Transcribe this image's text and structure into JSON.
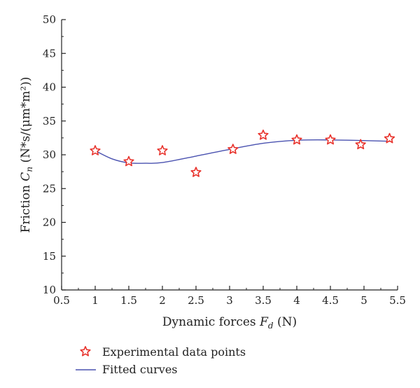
{
  "chart_data": {
    "type": "scatter",
    "xlabel": {
      "text": "Dynamic forces ",
      "symbol": "F",
      "subscript": "d",
      "unit": " (N)"
    },
    "ylabel": {
      "text": "Friction ",
      "symbol": "C",
      "subscript": "n",
      "unit": " (N*s/(μm*m²))"
    },
    "xlim": [
      0.5,
      5.5
    ],
    "ylim": [
      10,
      50
    ],
    "xticks": [
      0.5,
      1,
      1.5,
      2,
      2.5,
      3,
      3.5,
      4,
      4.5,
      5,
      5.5
    ],
    "xtick_labels": [
      "0.5",
      "1",
      "1.5",
      "2",
      "2.5",
      "3",
      "3.5",
      "4",
      "4.5",
      "5",
      "5.5"
    ],
    "yticks": [
      10,
      15,
      20,
      25,
      30,
      35,
      40,
      45,
      50
    ],
    "ytick_labels": [
      "10",
      "15",
      "20",
      "25",
      "30",
      "35",
      "40",
      "45",
      "50"
    ],
    "grid": false,
    "legend_position": "bottom-left below plot",
    "series": [
      {
        "name": "Experimental data points",
        "kind": "scatter",
        "marker": "star",
        "color": "#e8322b",
        "x": [
          1.0,
          1.5,
          2.0,
          2.5,
          3.05,
          3.5,
          4.0,
          4.5,
          4.95,
          5.38
        ],
        "y": [
          30.6,
          29.0,
          30.6,
          27.4,
          30.8,
          32.9,
          32.2,
          32.2,
          31.5,
          32.4
        ]
      },
      {
        "name": "Fitted curves",
        "kind": "line",
        "color": "#4a52b0",
        "x": [
          1.0,
          1.25,
          1.5,
          1.75,
          2.0,
          2.5,
          3.0,
          3.5,
          4.0,
          4.5,
          5.0,
          5.38
        ],
        "y": [
          30.6,
          29.4,
          28.8,
          28.75,
          28.85,
          29.8,
          30.8,
          31.7,
          32.15,
          32.2,
          32.1,
          32.0
        ]
      }
    ]
  }
}
